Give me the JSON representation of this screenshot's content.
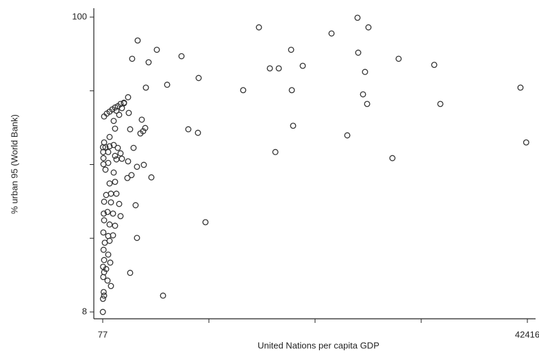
{
  "chart_data": {
    "type": "scatter",
    "x_label": "United Nations per capita GDP",
    "y_label": "% urban 95 (World Bank)",
    "color": "#333333",
    "xlim": [
      77,
      42416
    ],
    "ylim": [
      8,
      100
    ],
    "xticks": [
      77,
      42416
    ],
    "xticks_unlabeled": [
      10662,
      21247,
      31831
    ],
    "yticks": [
      8,
      100
    ],
    "yticks_unlabeled": [
      31,
      54,
      77
    ],
    "x": [
      15650,
      25480,
      26570,
      22890,
      3560,
      5470,
      3010,
      4650,
      7930,
      18860,
      16740,
      17630,
      20020,
      25550,
      29580,
      33130,
      26230,
      9640,
      6500,
      4380,
      14080,
      18930,
      26030,
      26440,
      33740,
      41730,
      42300,
      19060,
      8610,
      9570,
      24460,
      17290,
      28960,
      10320,
      6090,
      2810,
      2604,
      2194,
      1853,
      1579,
      1306,
      1033,
      760,
      487,
      214,
      1989,
      1443,
      2672,
      3970,
      1306,
      2809,
      4311,
      4106,
      3833,
      214,
      350,
      760,
      1170,
      1579,
      100,
      120,
      623,
      1306,
      1853,
      3150,
      1443,
      1989,
      150,
      623,
      2604,
      3492,
      4174,
      350,
      1170,
      2535,
      2945,
      4926,
      760,
      1306,
      418,
      896,
      1443,
      214,
      896,
      1716,
      3355,
      180,
      555,
      1101,
      1853,
      214,
      760,
      1306,
      140,
      623,
      1101,
      3492,
      282,
      760,
      160,
      623,
      214,
      828,
      110,
      418,
      214,
      130,
      555,
      896,
      170,
      214,
      100,
      90,
      2194,
      1716,
      1170,
      150,
      760
    ],
    "y": [
      96.8,
      99.8,
      96.8,
      94.9,
      92.7,
      89.8,
      87.0,
      85.9,
      87.8,
      89.8,
      84.0,
      84.0,
      84.8,
      88.9,
      87.0,
      85.1,
      82.9,
      81.0,
      78.9,
      78.0,
      77.2,
      77.2,
      75.9,
      72.9,
      72.9,
      78.0,
      60.9,
      66.1,
      65.0,
      63.9,
      63.1,
      57.9,
      56.0,
      36.0,
      13.1,
      20.2,
      75.0,
      73.3,
      72.9,
      72.2,
      71.8,
      71.2,
      70.5,
      69.9,
      69.0,
      71.6,
      70.8,
      70.1,
      68.0,
      65.2,
      65.0,
      65.4,
      64.4,
      63.7,
      60.9,
      59.4,
      59.7,
      60.1,
      59.2,
      59.4,
      57.9,
      57.9,
      56.7,
      57.5,
      59.2,
      55.6,
      55.8,
      54.1,
      54.5,
      55.0,
      53.3,
      53.9,
      52.4,
      51.5,
      49.8,
      50.7,
      50.0,
      48.1,
      48.6,
      44.5,
      44.9,
      44.9,
      42.4,
      42.2,
      41.7,
      41.3,
      38.7,
      39.2,
      38.7,
      37.9,
      36.6,
      35.3,
      34.9,
      32.8,
      31.7,
      31.9,
      31.1,
      29.6,
      30.2,
      27.4,
      25.9,
      24.2,
      23.4,
      22.1,
      21.4,
      20.4,
      18.9,
      17.8,
      16.1,
      14.2,
      13.1,
      12.1,
      8,
      73.1,
      69.5,
      67.6,
      56.0,
      62.6
    ]
  }
}
